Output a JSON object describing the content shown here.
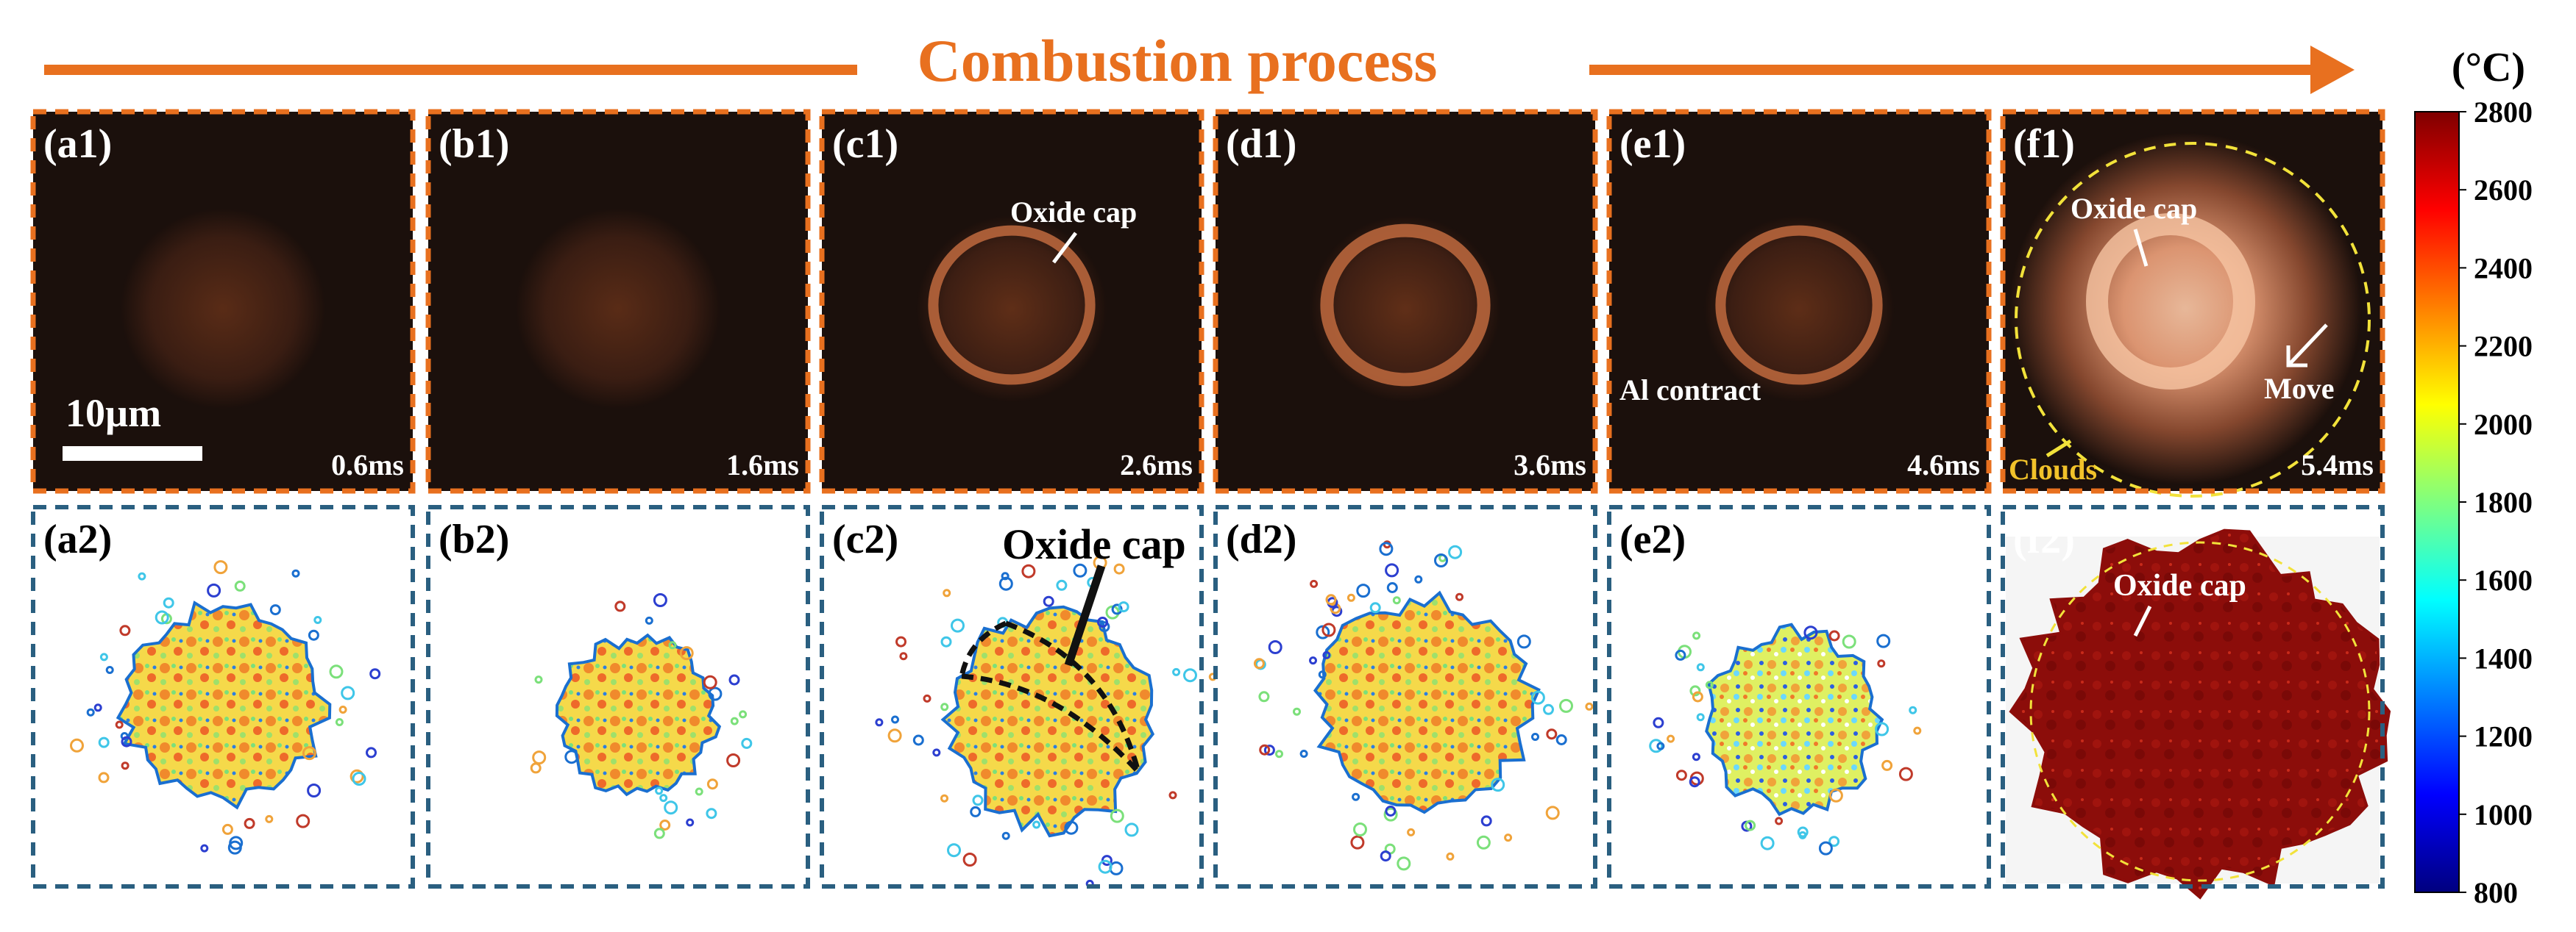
{
  "header": {
    "title": "Combustion process",
    "accent": "#e8701f",
    "frame_top": "#e8701f",
    "frame_bottom": "#2a5f80"
  },
  "top_panels": [
    {
      "label": "(a1)",
      "time": "0.6ms",
      "glow": 0.35
    },
    {
      "label": "(b1)",
      "time": "1.6ms",
      "glow": 0.35
    },
    {
      "label": "(c1)",
      "time": "2.6ms",
      "glow": 0.55
    },
    {
      "label": "(d1)",
      "time": "3.6ms",
      "glow": 0.6
    },
    {
      "label": "(e1)",
      "time": "4.6ms",
      "glow": 0.5
    },
    {
      "label": "(f1)",
      "time": "5.4ms",
      "glow": 1.0
    }
  ],
  "bottom_panels": [
    {
      "label": "(a2)"
    },
    {
      "label": "(b2)"
    },
    {
      "label": "(c2)"
    },
    {
      "label": "(d2)"
    },
    {
      "label": "(e2)"
    },
    {
      "label": "(f2)"
    }
  ],
  "annotations": {
    "scale": "10µm",
    "c1": "Oxide cap",
    "e1": "Al contract",
    "f1_cap": "Oxide cap",
    "f1_move": "Move",
    "f1_clouds": "Clouds",
    "c2": "Oxide cap",
    "f2": "Oxide cap"
  },
  "colorbar": {
    "unit": "(°C)",
    "ticks": [
      "2800",
      "2600",
      "2400",
      "2200",
      "2000",
      "1800",
      "1600",
      "1400",
      "1200",
      "1000",
      "800"
    ],
    "min": 800,
    "max": 2800,
    "colors": [
      "#00007f",
      "#0000ff",
      "#007fff",
      "#00ffff",
      "#7fff7f",
      "#ffff00",
      "#ff7f00",
      "#ff0000",
      "#7f0000"
    ]
  }
}
